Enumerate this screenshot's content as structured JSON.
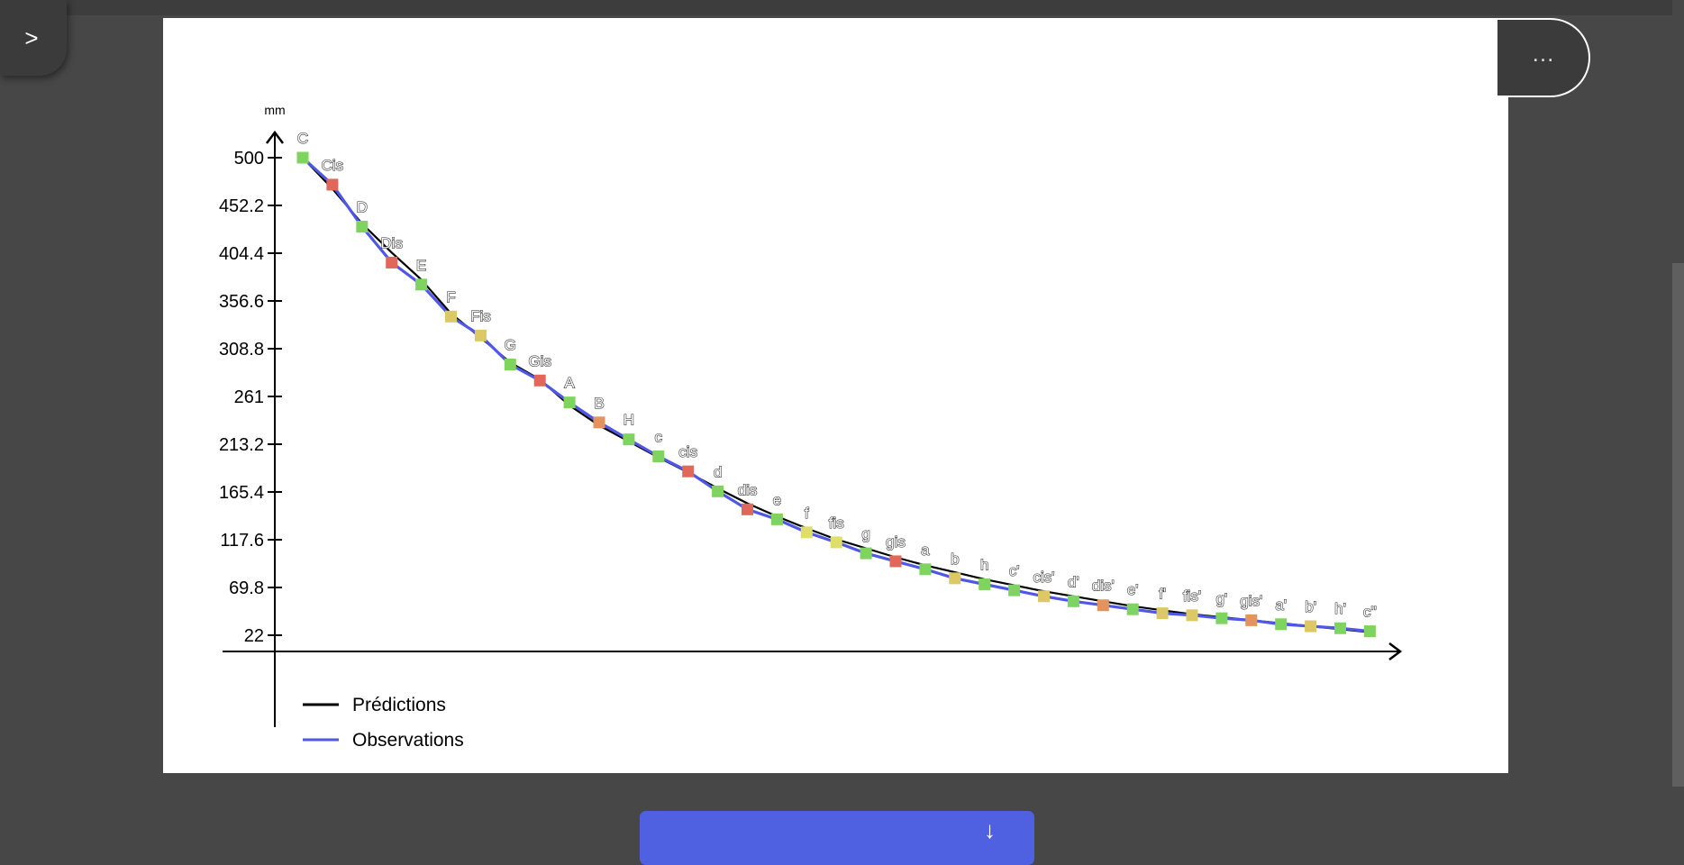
{
  "sidebar_toggle": {
    "label": ">"
  },
  "more_menu": {
    "label": "…"
  },
  "bottom_button": {
    "label": "↓"
  },
  "colors": {
    "page_bg": "#474747",
    "prediction_line": "#000000",
    "observation_line": "#4f57e6",
    "marker_green": "#7ed45f",
    "marker_red": "#e0675a",
    "marker_orange": "#e3945e",
    "marker_yellow": "#dcc864",
    "marker_yellow_light": "#dede6a"
  },
  "chart_data": {
    "type": "line",
    "ylabel": "mm",
    "ylim": [
      22,
      500
    ],
    "yticks": [
      "500",
      "452.2",
      "404.4",
      "356.6",
      "308.8",
      "261",
      "213.2",
      "165.4",
      "117.6",
      "69.8",
      "22"
    ],
    "legend_position": "bottom-left",
    "categories": [
      "C",
      "Cis",
      "D",
      "Dis",
      "E",
      "F",
      "Fis",
      "G",
      "Gis",
      "A",
      "B",
      "H",
      "c",
      "cis",
      "d",
      "dis",
      "e",
      "f",
      "fis",
      "g",
      "gis",
      "a",
      "b",
      "h",
      "c'",
      "cis'",
      "d'",
      "dis'",
      "e'",
      "f'",
      "fis'",
      "g'",
      "gis'",
      "a'",
      "b'",
      "h'",
      "c''"
    ],
    "series": [
      {
        "name": "Prédictions",
        "color": "#000000",
        "values": [
          500,
          469,
          434,
          405,
          378,
          344,
          320,
          295,
          278,
          252,
          232,
          216,
          200,
          185,
          169,
          154,
          141,
          129,
          118,
          109,
          100,
          92,
          85,
          78,
          72,
          66,
          61,
          56,
          51,
          47,
          43,
          40,
          37,
          34,
          31,
          28,
          25
        ]
      },
      {
        "name": "Observations",
        "color": "#4f57e6",
        "values": [
          500,
          473,
          431,
          395,
          373,
          341,
          322,
          293,
          277,
          255,
          235,
          218,
          201,
          186,
          166,
          148,
          138,
          125,
          115,
          104,
          96,
          88,
          79,
          73,
          67,
          61,
          56,
          52,
          48,
          44,
          42,
          39,
          37,
          33,
          31,
          29,
          26
        ]
      }
    ],
    "marker_colors": [
      "green",
      "red",
      "green",
      "red",
      "green",
      "yellow",
      "yellow",
      "green",
      "red",
      "green",
      "orange",
      "green",
      "green",
      "red",
      "green",
      "red",
      "green",
      "yellow_light",
      "yellow_light",
      "green",
      "red",
      "green",
      "yellow",
      "green",
      "green",
      "yellow",
      "green",
      "orange",
      "green",
      "yellow",
      "yellow",
      "green",
      "orange",
      "green",
      "yellow",
      "green",
      "green"
    ]
  }
}
